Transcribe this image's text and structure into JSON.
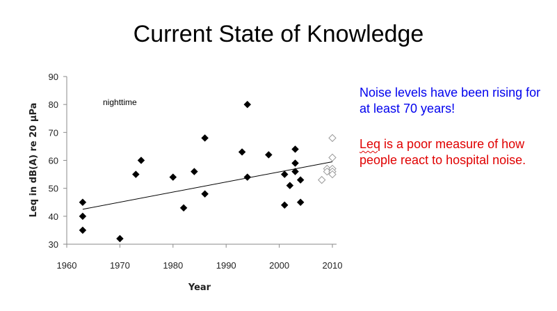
{
  "slide": {
    "title": "Current State of Knowledge",
    "notes": {
      "line1": "Noise levels have been rising for at least 70 years!",
      "line2_word": "Leq",
      "line2_rest": " is a poor measure of how people react to hospital noise."
    }
  },
  "chart_data": {
    "type": "scatter",
    "title": "",
    "xlabel": "Year",
    "ylabel": "Leq in dB(A) re 20 µPa",
    "xlim": [
      1960,
      2010
    ],
    "ylim": [
      30,
      90
    ],
    "x_ticks": [
      1960,
      1970,
      1980,
      1990,
      2000,
      2010
    ],
    "y_ticks": [
      30,
      40,
      50,
      60,
      70,
      80,
      90
    ],
    "annotation": "nighttime",
    "grid": false,
    "series": [
      {
        "marker": "filled-diamond",
        "color": "#000000",
        "points": [
          [
            1963,
            45
          ],
          [
            1963,
            40
          ],
          [
            1963,
            35
          ],
          [
            1970,
            32
          ],
          [
            1973,
            55
          ],
          [
            1974,
            60
          ],
          [
            1980,
            54
          ],
          [
            1982,
            43
          ],
          [
            1984,
            56
          ],
          [
            1986,
            68
          ],
          [
            1986,
            48
          ],
          [
            1993,
            63
          ],
          [
            1994,
            80
          ],
          [
            1994,
            54
          ],
          [
            1998,
            62
          ],
          [
            2001,
            55
          ],
          [
            2001,
            44
          ],
          [
            2002,
            51
          ],
          [
            2003,
            64
          ],
          [
            2003,
            59
          ],
          [
            2003,
            56
          ],
          [
            2004,
            53
          ],
          [
            2004,
            45
          ]
        ]
      },
      {
        "marker": "hollow-diamond",
        "color": "#9a9a9a",
        "points": [
          [
            2008,
            53
          ],
          [
            2009,
            57
          ],
          [
            2009,
            56
          ],
          [
            2010,
            68
          ],
          [
            2010,
            61
          ],
          [
            2010,
            57
          ],
          [
            2010,
            56
          ],
          [
            2010,
            55
          ]
        ]
      }
    ],
    "trendline": {
      "x": [
        1963,
        2010
      ],
      "y": [
        42.5,
        59.5
      ]
    }
  }
}
